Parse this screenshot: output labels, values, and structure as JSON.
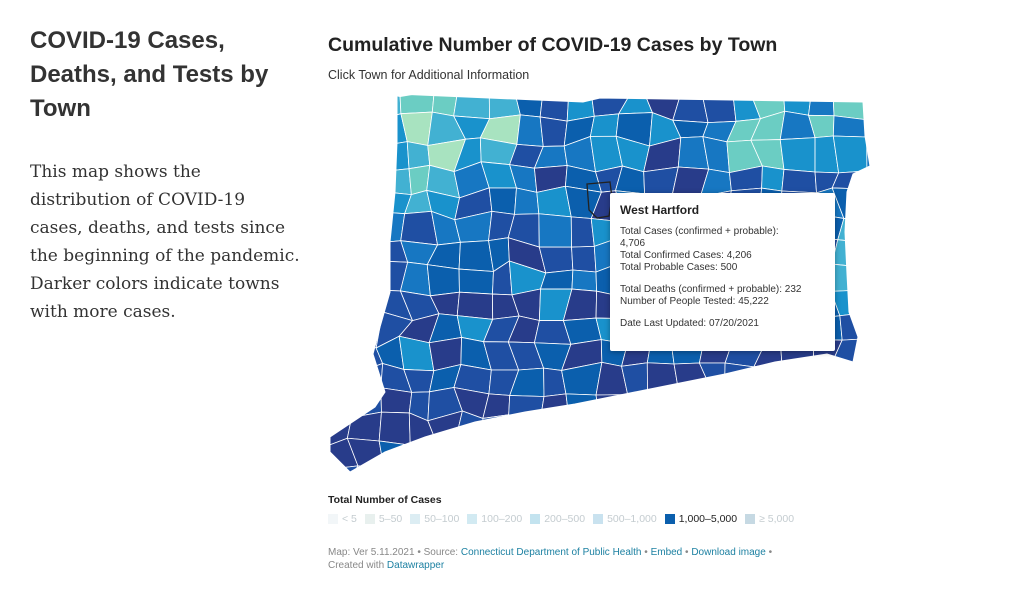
{
  "intro": {
    "title": "COVID-19 Cases, Deaths, and Tests by Town",
    "description": "This map shows the distribution of COVID-19 cases, deaths, and tests since the beginning of the pandemic. Darker colors indicate towns with more cases."
  },
  "map": {
    "title": "Cumulative Number of COVID-19 Cases by Town",
    "subtitle": "Click Town for Additional Information"
  },
  "tooltip": {
    "town": "West Hartford",
    "total_cases_label": "Total Cases (confirmed + probable):",
    "total_cases": "4,706",
    "confirmed": "Total Confirmed Cases: 4,206",
    "probable": "Total Probable Cases: 500",
    "deaths": "Total Deaths (confirmed + probable): 232",
    "tested": "Number of People Tested: 45,222",
    "updated": "Date Last Updated: 07/20/2021"
  },
  "legend": {
    "title": "Total Number of Cases",
    "items": [
      {
        "label": "< 5",
        "color": "#f2f6f8",
        "active": false
      },
      {
        "label": "5–50",
        "color": "#e8f0ee",
        "active": false
      },
      {
        "label": "50–100",
        "color": "#dcedf3",
        "active": false
      },
      {
        "label": "100–200",
        "color": "#d2eaf2",
        "active": false
      },
      {
        "label": "200–500",
        "color": "#c3e3ef",
        "active": false
      },
      {
        "label": "500–1,000",
        "color": "#c9e2ef",
        "active": false
      },
      {
        "label": "1,000–5,000",
        "color": "#0b5fad",
        "active": true
      },
      {
        "label": "≥ 5,000",
        "color": "#c6d9e3",
        "active": false
      }
    ]
  },
  "footer": {
    "prefix": "Map: Ver 5.11.2021 • Source: ",
    "source_link": "Connecticut Department of Public Health",
    "sep1": " • ",
    "embed_link": "Embed",
    "sep2": " • ",
    "download_link": "Download image",
    "sep3": " •",
    "created_prefix": "Created with ",
    "datawrapper_link": "Datawrapper"
  },
  "colors": {
    "darkest": "#283c8a",
    "dark": "#1f4fa3",
    "mid": "#0b5fad",
    "medium": "#1777c2",
    "light": "#1992cc",
    "lighter": "#42b1d2",
    "teal": "#6bcdc3",
    "pale": "#a8e3c0"
  }
}
